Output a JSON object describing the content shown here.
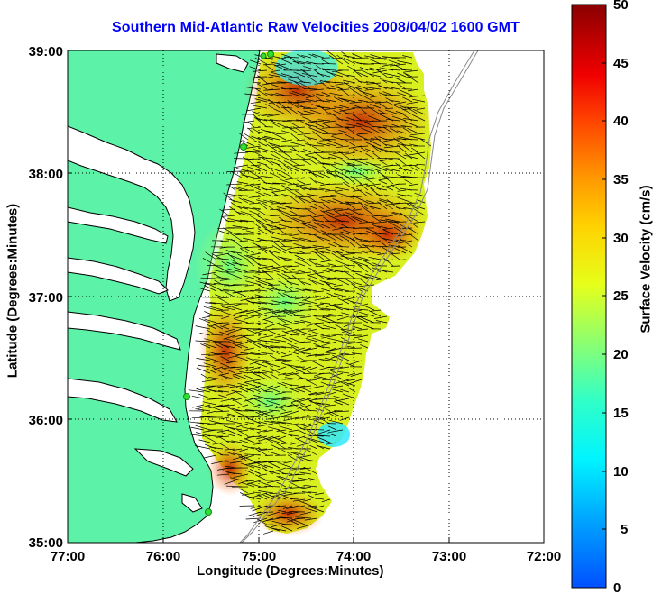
{
  "title": "Southern Mid-Atlantic Raw Velocities 2008/04/02 1600 GMT",
  "map": {
    "x_axis": {
      "label": "Longitude (Degrees:Minutes)",
      "ticks": [
        "77:00",
        "76:00",
        "75:00",
        "74:00",
        "73:00",
        "72:00"
      ],
      "range": [
        -77,
        -72
      ]
    },
    "y_axis": {
      "label": "Latitude (Degrees:Minutes)",
      "ticks": [
        "39:00",
        "38:00",
        "37:00",
        "36:00",
        "35:00"
      ],
      "range": [
        35,
        39
      ]
    },
    "grid": "dotted",
    "colorbar": {
      "label": "Surface Velocity (cm/s)",
      "ticks": [
        "50",
        "45",
        "40",
        "35",
        "30",
        "25",
        "20",
        "15",
        "10",
        "5",
        "0"
      ],
      "range": [
        0,
        50
      ]
    },
    "colors": {
      "land": "#5cf2a8",
      "water": "#ffffff",
      "coastline": "#000000",
      "arrows": "#000000",
      "stations": "#33dd33",
      "bathymetry": "#888888"
    }
  }
}
